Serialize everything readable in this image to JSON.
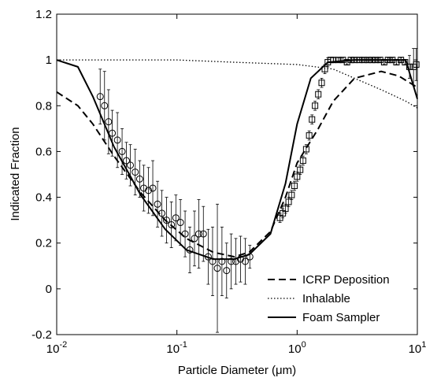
{
  "chart_data": {
    "type": "line",
    "xlabel": "Particle Diameter (μm)",
    "ylabel": "Indicated Fraction",
    "xscale": "log",
    "xlim": [
      0.01,
      10
    ],
    "ylim": [
      -0.2,
      1.2
    ],
    "xticks": [
      {
        "value": 0.01,
        "label": "10",
        "exponent": "-2"
      },
      {
        "value": 0.1,
        "label": "10",
        "exponent": "-1"
      },
      {
        "value": 1,
        "label": "10",
        "exponent": "0"
      },
      {
        "value": 10,
        "label": "10",
        "exponent": "1"
      }
    ],
    "yticks": [
      -0.2,
      0,
      0.2,
      0.4,
      0.6,
      0.8,
      1,
      1.2
    ],
    "legend": "lower right",
    "series": [
      {
        "name": "ICRP Deposition",
        "color": "#000000",
        "style": "dashed",
        "x": [
          0.01,
          0.015,
          0.02,
          0.03,
          0.05,
          0.08,
          0.12,
          0.2,
          0.3,
          0.4,
          0.6,
          0.8,
          1,
          1.5,
          2,
          3,
          5,
          7,
          10
        ],
        "values": [
          0.86,
          0.8,
          0.72,
          0.58,
          0.42,
          0.3,
          0.22,
          0.16,
          0.14,
          0.16,
          0.25,
          0.4,
          0.55,
          0.7,
          0.82,
          0.92,
          0.95,
          0.93,
          0.88
        ]
      },
      {
        "name": "Inhalable",
        "color": "#000000",
        "style": "dotted",
        "x": [
          0.01,
          0.1,
          0.3,
          1,
          2,
          3,
          5,
          8,
          10
        ],
        "values": [
          1,
          1,
          0.99,
          0.98,
          0.96,
          0.92,
          0.87,
          0.82,
          0.79
        ]
      },
      {
        "name": "Foam Sampler",
        "color": "#000000",
        "style": "solid",
        "x": [
          0.01,
          0.015,
          0.02,
          0.03,
          0.05,
          0.08,
          0.12,
          0.2,
          0.3,
          0.4,
          0.6,
          0.8,
          1,
          1.3,
          1.8,
          3,
          8,
          10
        ],
        "values": [
          1,
          0.97,
          0.84,
          0.62,
          0.41,
          0.26,
          0.17,
          0.13,
          0.13,
          0.15,
          0.24,
          0.46,
          0.72,
          0.92,
          0.99,
          1,
          1,
          0.83
        ]
      }
    ],
    "points": [
      {
        "marker": "circle",
        "color": "#000000",
        "x": [
          0.023,
          0.025,
          0.027,
          0.029,
          0.032,
          0.035,
          0.038,
          0.041,
          0.045,
          0.049,
          0.053,
          0.058,
          0.063,
          0.069,
          0.075,
          0.082,
          0.09,
          0.098,
          0.107,
          0.117,
          0.128,
          0.14,
          0.152,
          0.166,
          0.182,
          0.198,
          0.217,
          0.237,
          0.259,
          0.283,
          0.309,
          0.338,
          0.37,
          0.404
        ],
        "values": [
          0.84,
          0.8,
          0.73,
          0.68,
          0.65,
          0.6,
          0.56,
          0.54,
          0.51,
          0.48,
          0.44,
          0.43,
          0.44,
          0.37,
          0.33,
          0.3,
          0.28,
          0.31,
          0.29,
          0.24,
          0.17,
          0.22,
          0.24,
          0.24,
          0.14,
          0.12,
          0.09,
          0.12,
          0.08,
          0.12,
          0.12,
          0.13,
          0.12,
          0.14
        ],
        "errors": [
          0.12,
          0.15,
          0.14,
          0.1,
          0.12,
          0.1,
          0.08,
          0.09,
          0.1,
          0.08,
          0.1,
          0.1,
          0.12,
          0.1,
          0.1,
          0.1,
          0.1,
          0.1,
          0.1,
          0.1,
          0.1,
          0.12,
          0.15,
          0.12,
          0.12,
          0.15,
          0.28,
          0.15,
          0.12,
          0.12,
          0.1,
          0.1,
          0.1,
          0.05
        ]
      },
      {
        "marker": "square",
        "color": "#000000",
        "x": [
          0.72,
          0.76,
          0.8,
          0.85,
          0.9,
          0.95,
          1,
          1.06,
          1.12,
          1.19,
          1.26,
          1.33,
          1.41,
          1.5,
          1.6,
          1.7,
          1.8,
          1.9,
          2,
          2.2,
          2.4,
          2.6,
          2.8,
          3,
          3.3,
          3.6,
          3.9,
          4.2,
          4.5,
          4.9,
          5.3,
          5.7,
          6.2,
          6.7,
          7.3,
          7.9,
          8.6,
          9.3,
          9.8
        ],
        "values": [
          0.31,
          0.33,
          0.35,
          0.38,
          0.41,
          0.45,
          0.49,
          0.52,
          0.56,
          0.61,
          0.67,
          0.74,
          0.8,
          0.85,
          0.9,
          0.96,
          0.99,
          1,
          1,
          1,
          1,
          0.99,
          1,
          1,
          1,
          1,
          1,
          1,
          1,
          1,
          0.99,
          1,
          1,
          0.99,
          1,
          0.99,
          0.97,
          0.97,
          0.98
        ],
        "errors": [
          0.02,
          0.02,
          0.02,
          0.02,
          0.02,
          0.02,
          0.02,
          0.02,
          0.02,
          0.02,
          0.02,
          0.02,
          0.02,
          0.02,
          0.02,
          0.02,
          0.02,
          0.01,
          0.01,
          0.01,
          0.01,
          0.01,
          0.01,
          0.01,
          0.01,
          0.01,
          0.01,
          0.01,
          0.01,
          0.01,
          0.01,
          0.01,
          0.01,
          0.01,
          0.01,
          0.01,
          0.05,
          0.08,
          0.07
        ]
      }
    ]
  }
}
